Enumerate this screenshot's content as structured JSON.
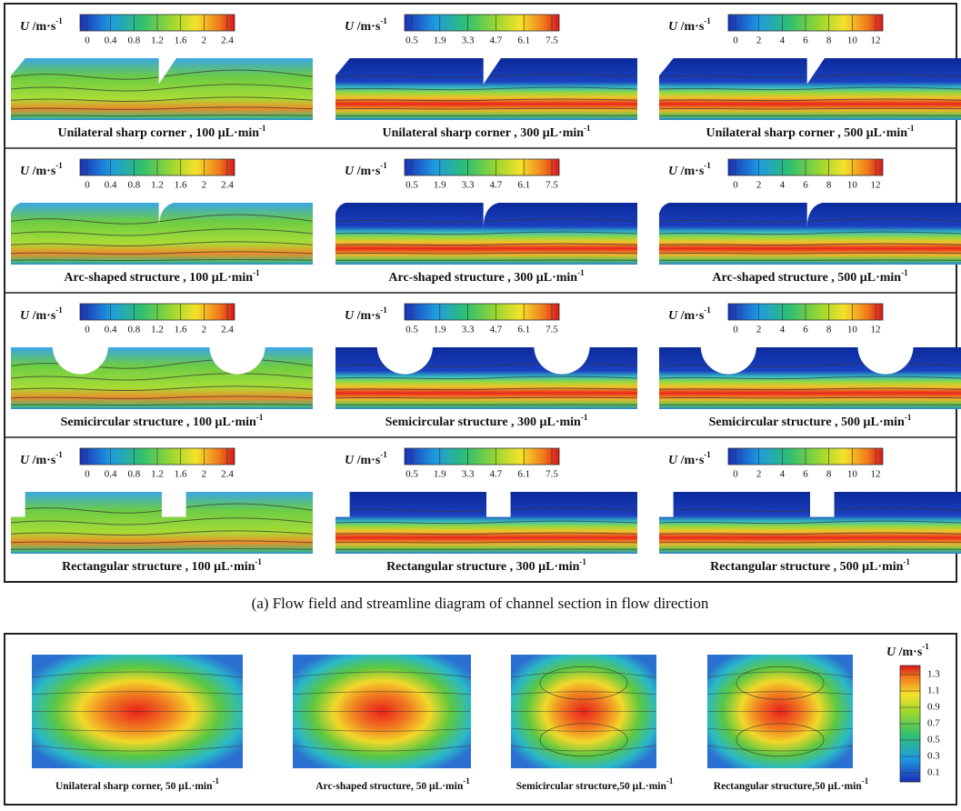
{
  "part_a": {
    "caption": "(a) Flow field and streamline diagram of channel section in flow direction",
    "unit": {
      "symbol": "U",
      "text": " /m·s",
      "exponent": "-1"
    },
    "colorbars": [
      {
        "ticks": [
          0,
          0.4,
          0.8,
          1.2,
          1.6,
          2,
          2.4
        ]
      },
      {
        "ticks": [
          0.5,
          1.9,
          3.3,
          4.7,
          6.1,
          7.5
        ]
      },
      {
        "ticks": [
          0,
          2,
          4,
          6,
          8,
          10,
          12
        ]
      }
    ],
    "rows": [
      {
        "panels": [
          {
            "caption": "Unilateral sharp corner ,  100 μL·min",
            "sup": "-1"
          },
          {
            "caption": "Unilateral sharp corner ,  300 μL·min",
            "sup": "-1"
          },
          {
            "caption": "Unilateral sharp corner ,  500 μL·min",
            "sup": "-1"
          }
        ]
      },
      {
        "panels": [
          {
            "caption": "Arc-shaped structure ,  100 μL·min",
            "sup": "-1"
          },
          {
            "caption": "Arc-shaped structure ,  300 μL·min",
            "sup": "-1"
          },
          {
            "caption": "Arc-shaped structure ,  500 μL·min",
            "sup": "-1"
          }
        ]
      },
      {
        "panels": [
          {
            "caption": "Semicircular structure ,  100 μL·min",
            "sup": "-1"
          },
          {
            "caption": "Semicircular structure ,  300 μL·min",
            "sup": "-1"
          },
          {
            "caption": "Semicircular structure ,  500 μL·min",
            "sup": "-1"
          }
        ]
      },
      {
        "panels": [
          {
            "caption": "Rectangular structure ,  100 μL·min",
            "sup": "-1"
          },
          {
            "caption": "Rectangular structure ,  300 μL·min",
            "sup": "-1"
          },
          {
            "caption": "Rectangular structure ,  500 μL·min",
            "sup": "-1"
          }
        ]
      }
    ]
  },
  "part_b": {
    "unit": {
      "symbol": "U",
      "text": " /m·s",
      "exponent": "-1"
    },
    "colorbar": {
      "ticks": [
        1.3,
        1.1,
        0.9,
        0.7,
        0.5,
        0.3,
        0.1
      ]
    },
    "panels": [
      {
        "caption": "Unilateral sharp corner, 50 μL·min",
        "sup": "-1"
      },
      {
        "caption": "Arc-shaped structure, 50 μL·min",
        "sup": "-1"
      },
      {
        "caption": "Semicircular structure,50 μL·min",
        "sup": "-1"
      },
      {
        "caption": "Rectangular structure,50 μL·min",
        "sup": "-1"
      }
    ]
  }
}
